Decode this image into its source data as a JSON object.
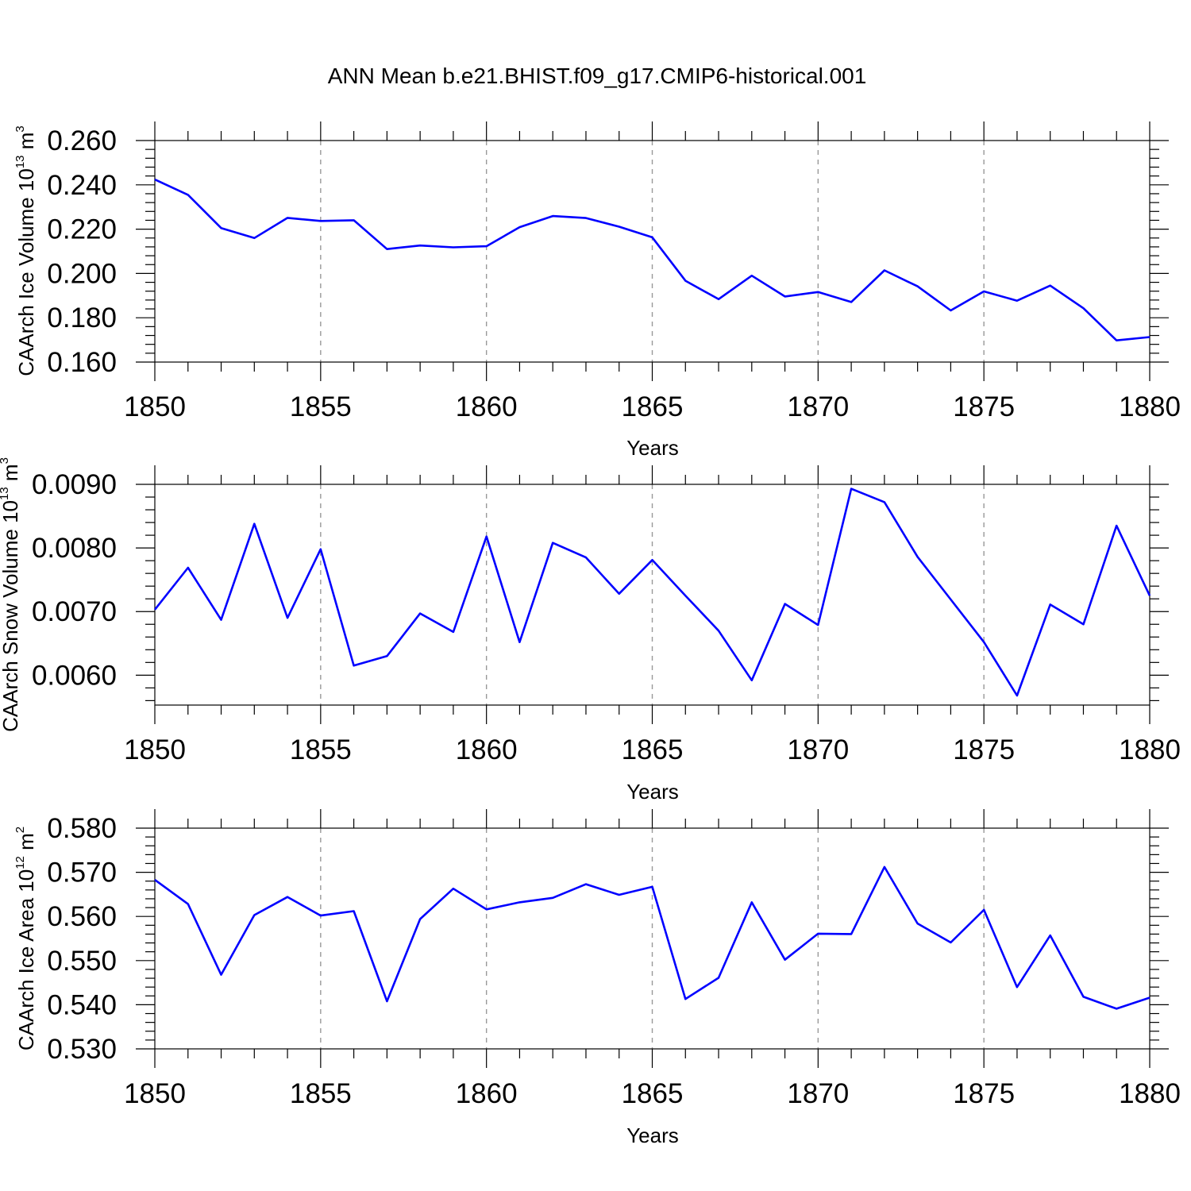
{
  "page_title": "ANN Mean b.e21.BHIST.f09_g17.CMIP6-historical.001",
  "series_color": "#0000ff",
  "chart_data": [
    {
      "type": "line",
      "title": "ANN Mean b.e21.BHIST.f09_g17.CMIP6-historical.001",
      "xlabel": "Years",
      "ylabel": {
        "text": "CAArch Ice Volume 10",
        "sup1": "13",
        "mid": " m",
        "sup2": "3"
      },
      "xlim": [
        1850,
        1880
      ],
      "ylim": [
        0.16,
        0.26
      ],
      "xticks": [
        1850,
        1855,
        1860,
        1865,
        1870,
        1875,
        1880
      ],
      "xtick_labels": [
        "1850",
        "1855",
        "1860",
        "1865",
        "1870",
        "1875",
        "1880"
      ],
      "yticks": [
        0.16,
        0.18,
        0.2,
        0.22,
        0.24,
        0.26
      ],
      "ytick_labels": [
        "0.160",
        "0.180",
        "0.200",
        "0.220",
        "0.240",
        "0.260"
      ],
      "grid": "vertical dashed at major x ticks",
      "series": [
        {
          "name": "CAArch Ice Volume",
          "x": [
            1850,
            1851,
            1852,
            1853,
            1854,
            1855,
            1856,
            1857,
            1858,
            1859,
            1860,
            1861,
            1862,
            1863,
            1864,
            1865,
            1866,
            1867,
            1868,
            1869,
            1870,
            1871,
            1872,
            1873,
            1874,
            1875,
            1876,
            1877,
            1878,
            1879,
            1880
          ],
          "values": [
            0.2424,
            0.2355,
            0.2205,
            0.216,
            0.2251,
            0.2237,
            0.224,
            0.211,
            0.2126,
            0.2118,
            0.2123,
            0.2209,
            0.2259,
            0.225,
            0.2211,
            0.2163,
            0.1967,
            0.1884,
            0.199,
            0.1896,
            0.1916,
            0.1871,
            0.2014,
            0.1942,
            0.1833,
            0.1919,
            0.1877,
            0.1945,
            0.1843,
            0.1698,
            0.1713
          ]
        }
      ]
    },
    {
      "type": "line",
      "xlabel": "Years",
      "ylabel": {
        "text": "CAArch Snow Volume 10",
        "sup1": "13",
        "mid": " m",
        "sup2": "3"
      },
      "xlim": [
        1850,
        1880
      ],
      "ylim": [
        0.00553,
        0.009
      ],
      "xticks": [
        1850,
        1855,
        1860,
        1865,
        1870,
        1875,
        1880
      ],
      "xtick_labels": [
        "1850",
        "1855",
        "1860",
        "1865",
        "1870",
        "1875",
        "1880"
      ],
      "yticks": [
        0.006,
        0.007,
        0.008,
        0.009
      ],
      "ytick_labels": [
        "0.0060",
        "0.0070",
        "0.0080",
        "0.0090"
      ],
      "grid": "vertical dashed at major x ticks",
      "series": [
        {
          "name": "CAArch Snow Volume",
          "x": [
            1850,
            1851,
            1852,
            1853,
            1854,
            1855,
            1856,
            1857,
            1858,
            1859,
            1860,
            1861,
            1862,
            1863,
            1864,
            1865,
            1866,
            1867,
            1868,
            1869,
            1870,
            1871,
            1872,
            1873,
            1874,
            1875,
            1876,
            1877,
            1878,
            1879,
            1880
          ],
          "values": [
            0.00703,
            0.00769,
            0.00687,
            0.00838,
            0.0069,
            0.00798,
            0.00615,
            0.0063,
            0.00697,
            0.00668,
            0.00818,
            0.00652,
            0.00808,
            0.00785,
            0.00728,
            0.00781,
            0.00725,
            0.0067,
            0.00592,
            0.00712,
            0.00679,
            0.00893,
            0.00872,
            0.00786,
            0.00719,
            0.00652,
            0.00568,
            0.00711,
            0.0068,
            0.00835,
            0.00725
          ]
        }
      ]
    },
    {
      "type": "line",
      "xlabel": "Years",
      "ylabel": {
        "text": "CAArch Ice Area 10",
        "sup1": "12",
        "mid": " m",
        "sup2": "2"
      },
      "xlim": [
        1850,
        1880
      ],
      "ylim": [
        0.53,
        0.58
      ],
      "xticks": [
        1850,
        1855,
        1860,
        1865,
        1870,
        1875,
        1880
      ],
      "xtick_labels": [
        "1850",
        "1855",
        "1860",
        "1865",
        "1870",
        "1875",
        "1880"
      ],
      "yticks": [
        0.53,
        0.54,
        0.55,
        0.56,
        0.57,
        0.58
      ],
      "ytick_labels": [
        "0.530",
        "0.540",
        "0.550",
        "0.560",
        "0.570",
        "0.580"
      ],
      "grid": "vertical dashed at major x ticks",
      "series": [
        {
          "name": "CAArch Ice Area",
          "x": [
            1850,
            1851,
            1852,
            1853,
            1854,
            1855,
            1856,
            1857,
            1858,
            1859,
            1860,
            1861,
            1862,
            1863,
            1864,
            1865,
            1866,
            1867,
            1868,
            1869,
            1870,
            1871,
            1872,
            1873,
            1874,
            1875,
            1876,
            1877,
            1878,
            1879,
            1880
          ],
          "values": [
            0.5683,
            0.5628,
            0.5468,
            0.5603,
            0.5644,
            0.5602,
            0.5612,
            0.5408,
            0.5594,
            0.5663,
            0.5616,
            0.5632,
            0.5642,
            0.5673,
            0.5649,
            0.5667,
            0.5413,
            0.5461,
            0.5632,
            0.5502,
            0.5561,
            0.556,
            0.5712,
            0.5584,
            0.5541,
            0.5615,
            0.544,
            0.5557,
            0.5418,
            0.5391,
            0.5416
          ]
        }
      ]
    }
  ]
}
